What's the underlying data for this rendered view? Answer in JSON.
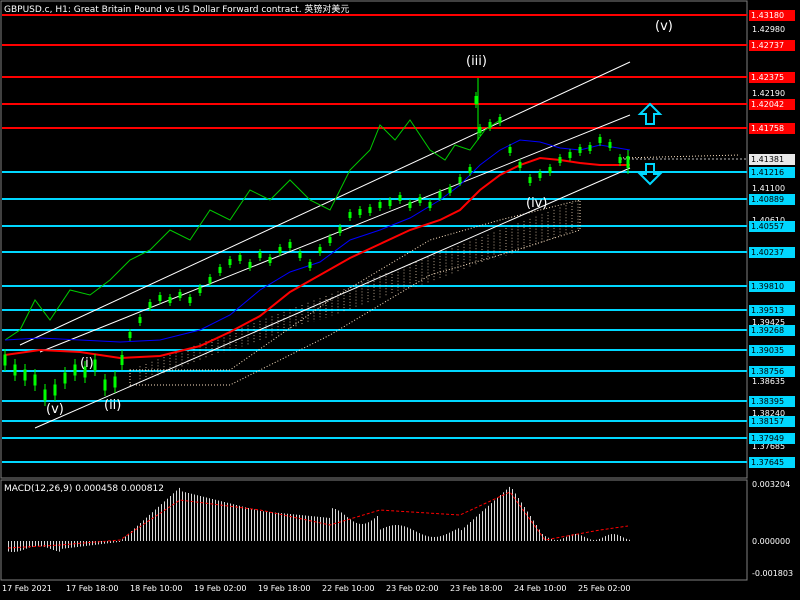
{
  "chart": {
    "title": "GBPUSD.c, H1:  Great Britain Pound vs US Dollar Forward contract. 英镑对美元",
    "macd_title": "MACD(12,26,9) 0.000458 0.000812"
  },
  "price_axis": {
    "labels": [
      "1.42980",
      "1.42190",
      "1.41100",
      "1.40610",
      "1.39425",
      "1.38635",
      "1.38240",
      "1.37685"
    ],
    "red_tags": [
      "1.43180",
      "1.42737",
      "1.42375",
      "1.42042",
      "1.41758"
    ],
    "cyan_tags": [
      "1.41216",
      "1.40889",
      "1.40557",
      "1.40237",
      "1.39810",
      "1.39513",
      "1.39268",
      "1.39035",
      "1.38756",
      "1.38395",
      "1.38157",
      "1.37949",
      "1.37645"
    ],
    "current_price": "1.41381"
  },
  "macd_axis": {
    "labels": [
      "0.003204",
      "0.000000",
      "-0.001803"
    ]
  },
  "time_axis": {
    "labels": [
      "17 Feb 2021",
      "17 Feb 18:00",
      "18 Feb 10:00",
      "19 Feb 02:00",
      "19 Feb 18:00",
      "22 Feb 10:00",
      "23 Feb 02:00",
      "23 Feb 18:00",
      "24 Feb 10:00",
      "25 Feb 02:00"
    ]
  },
  "wave_labels": {
    "v_bottom": "(v)",
    "i": "(i)",
    "ii": "(ii)",
    "iii": "(iii)",
    "iv": "(iv)",
    "v_top": "(v)"
  },
  "colors": {
    "background": "#000000",
    "candles": "#00ff00",
    "red_levels": "#ff0000",
    "cyan_levels": "#00d7ff",
    "ma_red": "#ff0000",
    "ma_blue": "#0000ff",
    "chikou": "#00cc00",
    "channel": "#ffffff",
    "cloud": "#ffe4c4",
    "macd_signal": "#ff0000",
    "arrows": "#00d7ff"
  },
  "icons": {
    "up_arrow": "up-arrow-icon",
    "down_arrow": "down-arrow-icon"
  }
}
